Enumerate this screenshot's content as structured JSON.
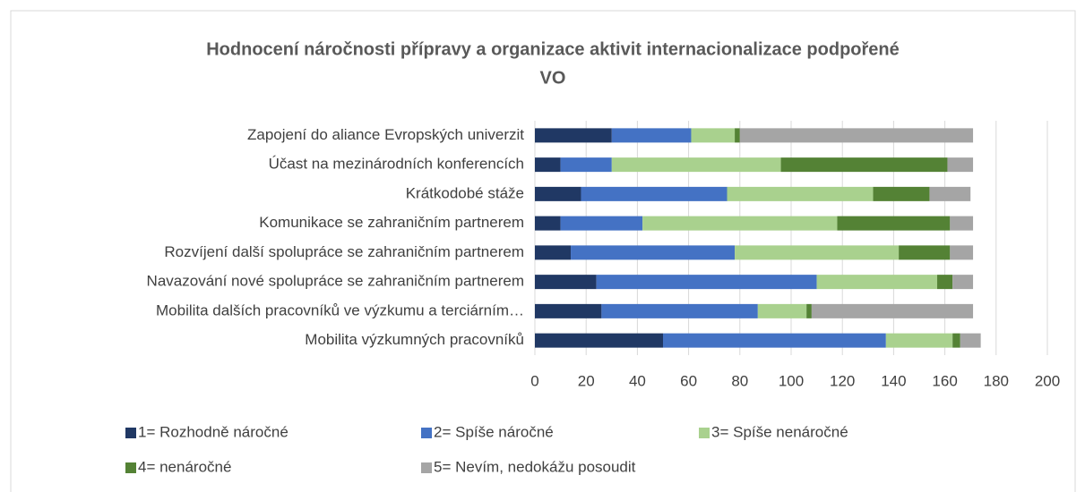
{
  "chart_data": {
    "type": "stacked_barh",
    "title": [
      "Hodnocení náročnosti přípravy a organizace aktivit internacionalizace  podpořené",
      "VO"
    ],
    "categories": [
      "Zapojení do aliance Evropských univerzit",
      "Účast na mezinárodních konferencích ",
      "Krátkodobé stáže",
      "Komunikace se zahraničním partnerem ",
      "Rozvíjení další spolupráce se zahraničním partnerem",
      "Navazování nové spolupráce se zahraničním partnerem",
      "Mobilita dalších pracovníků ve výzkumu a terciárním…",
      "Mobilita výzkumných pracovníků"
    ],
    "series": [
      {
        "name": "1= Rozhodně náročné",
        "color": "#203864",
        "values": [
          30,
          10,
          18,
          10,
          14,
          24,
          26,
          50
        ]
      },
      {
        "name": "2= Spíše náročné",
        "color": "#4472c4",
        "values": [
          31,
          20,
          57,
          32,
          64,
          86,
          61,
          87
        ]
      },
      {
        "name": "3= Spíše nenáročné",
        "color": "#a9d18e",
        "values": [
          17,
          66,
          57,
          76,
          64,
          47,
          19,
          26
        ]
      },
      {
        "name": "4= nenáročné",
        "color": "#548235",
        "values": [
          2,
          65,
          22,
          44,
          20,
          6,
          2,
          3
        ]
      },
      {
        "name": "5= Nevím, nedokážu posoudit",
        "color": "#a5a5a5",
        "values": [
          91,
          10,
          16,
          9,
          9,
          8,
          63,
          8
        ]
      }
    ],
    "xlim": [
      0,
      200
    ],
    "xticks": [
      0,
      20,
      40,
      60,
      80,
      100,
      120,
      140,
      160,
      180,
      200
    ],
    "grid": true
  }
}
